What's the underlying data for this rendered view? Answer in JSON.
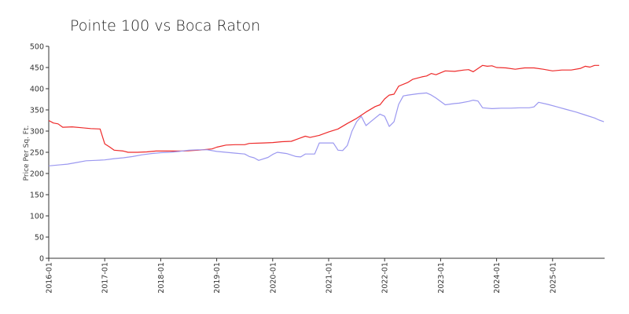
{
  "chart_data": {
    "type": "line",
    "title": "Pointe 100 vs Boca Raton",
    "xlabel": "",
    "ylabel": "Price Per Sq. Ft.",
    "ylim": [
      0,
      500
    ],
    "xlim": [
      "2016-01",
      "2025-11"
    ],
    "y_ticks": [
      0,
      50,
      100,
      150,
      200,
      250,
      300,
      350,
      400,
      450,
      500
    ],
    "x_ticks": [
      "2016-01",
      "2017-01",
      "2018-01",
      "2019-01",
      "2020-01",
      "2021-01",
      "2022-01",
      "2023-01",
      "2024-01",
      "2025-01"
    ],
    "grid": false,
    "legend": "none",
    "series": [
      {
        "color": "#ee2a2a",
        "points": [
          [
            "2016-01",
            325
          ],
          [
            "2016-02",
            319
          ],
          [
            "2016-03",
            317
          ],
          [
            "2016-04",
            309
          ],
          [
            "2016-06",
            310
          ],
          [
            "2016-08",
            308
          ],
          [
            "2016-10",
            306
          ],
          [
            "2016-12",
            305
          ],
          [
            "2017-01",
            270
          ],
          [
            "2017-02",
            263
          ],
          [
            "2017-03",
            255
          ],
          [
            "2017-05",
            253
          ],
          [
            "2017-06",
            250
          ],
          [
            "2017-08",
            250
          ],
          [
            "2017-10",
            251
          ],
          [
            "2017-12",
            253
          ],
          [
            "2018-03",
            253
          ],
          [
            "2018-06",
            253
          ],
          [
            "2018-09",
            255
          ],
          [
            "2018-12",
            258
          ],
          [
            "2019-01",
            262
          ],
          [
            "2019-03",
            267
          ],
          [
            "2019-05",
            268
          ],
          [
            "2019-07",
            268
          ],
          [
            "2019-08",
            271
          ],
          [
            "2019-11",
            272
          ],
          [
            "2020-01",
            273
          ],
          [
            "2020-03",
            275
          ],
          [
            "2020-05",
            276
          ],
          [
            "2020-06",
            280
          ],
          [
            "2020-08",
            288
          ],
          [
            "2020-09",
            285
          ],
          [
            "2020-11",
            290
          ],
          [
            "2021-01",
            298
          ],
          [
            "2021-03",
            305
          ],
          [
            "2021-05",
            318
          ],
          [
            "2021-07",
            330
          ],
          [
            "2021-09",
            345
          ],
          [
            "2021-11",
            358
          ],
          [
            "2021-12",
            362
          ],
          [
            "2022-01",
            376
          ],
          [
            "2022-02",
            385
          ],
          [
            "2022-03",
            387
          ],
          [
            "2022-04",
            406
          ],
          [
            "2022-06",
            415
          ],
          [
            "2022-07",
            422
          ],
          [
            "2022-09",
            428
          ],
          [
            "2022-10",
            430
          ],
          [
            "2022-11",
            436
          ],
          [
            "2022-12",
            433
          ],
          [
            "2023-02",
            442
          ],
          [
            "2023-04",
            441
          ],
          [
            "2023-06",
            444
          ],
          [
            "2023-07",
            445
          ],
          [
            "2023-08",
            440
          ],
          [
            "2023-10",
            455
          ],
          [
            "2023-11",
            453
          ],
          [
            "2023-12",
            454
          ],
          [
            "2024-01",
            450
          ],
          [
            "2024-03",
            449
          ],
          [
            "2024-05",
            446
          ],
          [
            "2024-07",
            449
          ],
          [
            "2024-09",
            449
          ],
          [
            "2024-11",
            446
          ],
          [
            "2025-01",
            442
          ],
          [
            "2025-03",
            444
          ],
          [
            "2025-05",
            444
          ],
          [
            "2025-07",
            448
          ],
          [
            "2025-08",
            453
          ],
          [
            "2025-09",
            451
          ],
          [
            "2025-10",
            455
          ],
          [
            "2025-11",
            455
          ]
        ]
      },
      {
        "color": "#9b98f0",
        "points": [
          [
            "2016-01",
            218
          ],
          [
            "2016-03",
            220
          ],
          [
            "2016-05",
            222
          ],
          [
            "2016-07",
            226
          ],
          [
            "2016-09",
            230
          ],
          [
            "2016-11",
            231
          ],
          [
            "2017-01",
            232
          ],
          [
            "2017-03",
            235
          ],
          [
            "2017-05",
            237
          ],
          [
            "2017-07",
            240
          ],
          [
            "2017-09",
            244
          ],
          [
            "2017-11",
            247
          ],
          [
            "2018-01",
            249
          ],
          [
            "2018-03",
            250
          ],
          [
            "2018-05",
            252
          ],
          [
            "2018-07",
            255
          ],
          [
            "2018-09",
            256
          ],
          [
            "2018-11",
            256
          ],
          [
            "2019-01",
            252
          ],
          [
            "2019-03",
            250
          ],
          [
            "2019-05",
            248
          ],
          [
            "2019-07",
            246
          ],
          [
            "2019-08",
            240
          ],
          [
            "2019-09",
            237
          ],
          [
            "2019-10",
            231
          ],
          [
            "2019-12",
            238
          ],
          [
            "2020-01",
            245
          ],
          [
            "2020-02",
            250
          ],
          [
            "2020-04",
            247
          ],
          [
            "2020-06",
            240
          ],
          [
            "2020-07",
            239
          ],
          [
            "2020-08",
            246
          ],
          [
            "2020-10",
            246
          ],
          [
            "2020-11",
            272
          ],
          [
            "2021-01",
            272
          ],
          [
            "2021-02",
            272
          ],
          [
            "2021-03",
            255
          ],
          [
            "2021-04",
            254
          ],
          [
            "2021-05",
            266
          ],
          [
            "2021-06",
            300
          ],
          [
            "2021-07",
            322
          ],
          [
            "2021-08",
            335
          ],
          [
            "2021-09",
            313
          ],
          [
            "2021-10",
            322
          ],
          [
            "2021-12",
            340
          ],
          [
            "2022-01",
            335
          ],
          [
            "2022-02",
            311
          ],
          [
            "2022-03",
            322
          ],
          [
            "2022-04",
            363
          ],
          [
            "2022-05",
            383
          ],
          [
            "2022-06",
            385
          ],
          [
            "2022-08",
            388
          ],
          [
            "2022-10",
            390
          ],
          [
            "2022-11",
            385
          ],
          [
            "2022-12",
            378
          ],
          [
            "2023-02",
            362
          ],
          [
            "2023-04",
            365
          ],
          [
            "2023-05",
            366
          ],
          [
            "2023-07",
            370
          ],
          [
            "2023-08",
            373
          ],
          [
            "2023-09",
            371
          ],
          [
            "2023-10",
            355
          ],
          [
            "2023-12",
            353
          ],
          [
            "2024-02",
            354
          ],
          [
            "2024-04",
            354
          ],
          [
            "2024-06",
            355
          ],
          [
            "2024-08",
            355
          ],
          [
            "2024-09",
            357
          ],
          [
            "2024-10",
            368
          ],
          [
            "2024-12",
            363
          ],
          [
            "2025-02",
            357
          ],
          [
            "2025-04",
            351
          ],
          [
            "2025-06",
            345
          ],
          [
            "2025-08",
            338
          ],
          [
            "2025-10",
            331
          ],
          [
            "2025-11",
            326
          ],
          [
            "2025-12",
            322
          ]
        ]
      }
    ]
  }
}
